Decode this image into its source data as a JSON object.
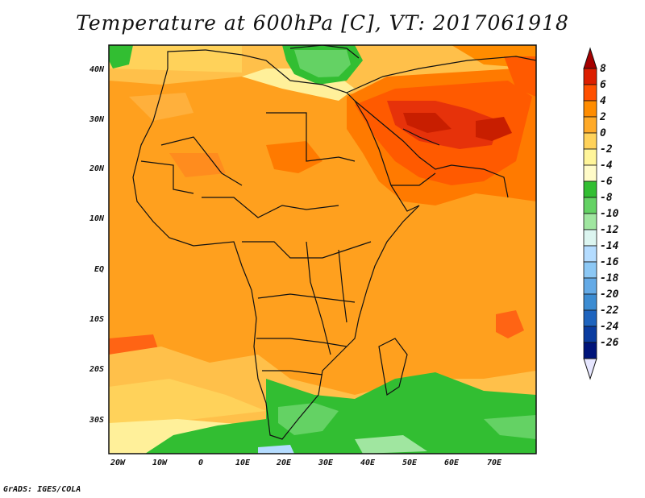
{
  "title": "Temperature at 600hPa [C], VT: 2017061918",
  "credit": "GrADS: IGES/COLA",
  "map": {
    "region": "Africa, Middle East and South Asia",
    "longitude_labels": [
      "20W",
      "10W",
      "0",
      "10E",
      "20E",
      "30E",
      "40E",
      "50E",
      "60E",
      "70E"
    ],
    "latitude_labels": [
      "40N",
      "30N",
      "20N",
      "10N",
      "EQ",
      "10S",
      "20S",
      "30S"
    ]
  },
  "colorbar": {
    "labels": [
      "8",
      "6",
      "4",
      "2",
      "0",
      "-2",
      "-4",
      "-6",
      "-8",
      "-10",
      "-12",
      "-14",
      "-16",
      "-18",
      "-20",
      "-22",
      "-24",
      "-26"
    ],
    "colors": [
      "#a50000",
      "#dc1e00",
      "#ff5000",
      "#ff8c00",
      "#ffaa28",
      "#ffd25a",
      "#fff59a",
      "#fffbc8",
      "#32be32",
      "#64d264",
      "#a0e6a0",
      "#dcf5f0",
      "#b4dcff",
      "#8cc8f5",
      "#64aae6",
      "#3c8cd2",
      "#1e64be",
      "#0a3ca0",
      "#00147a",
      "#e6e6ff"
    ]
  }
}
